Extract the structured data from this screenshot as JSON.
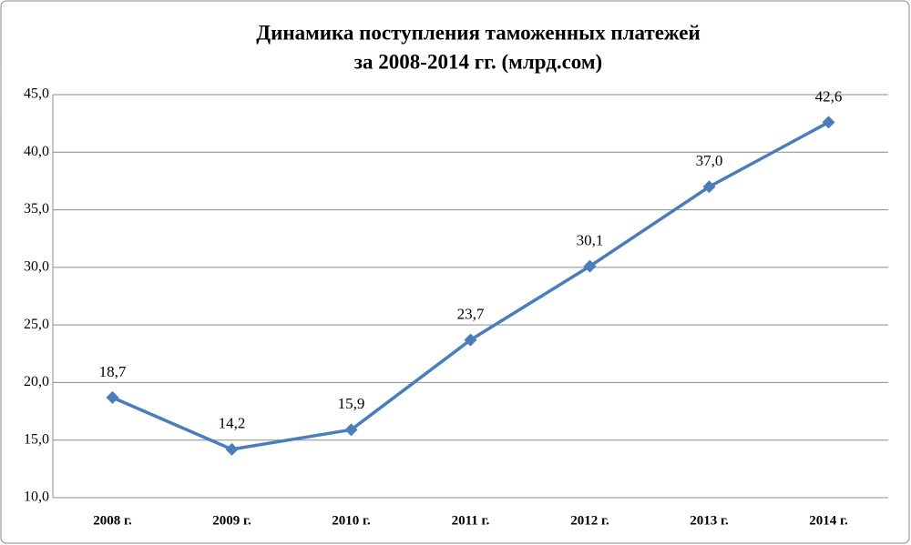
{
  "chart_data": {
    "type": "line",
    "title": [
      "Динамика поступления таможенных платежей",
      "за 2008-2014 гг. (млрд.сом)"
    ],
    "categories": [
      "2008 г.",
      "2009 г.",
      "2010 г.",
      "2011 г.",
      "2012 г.",
      "2013 г.",
      "2014 г."
    ],
    "series": [
      {
        "color": "#4a7ebb",
        "values": [
          18.7,
          14.2,
          15.9,
          23.7,
          30.1,
          37.0,
          42.6
        ],
        "value_labels": [
          "18,7",
          "14,2",
          "15,9",
          "23,7",
          "30,1",
          "37,0",
          "42,6"
        ]
      }
    ],
    "ylim": [
      10,
      45
    ],
    "yticks": [
      {
        "value": 10,
        "label": "10,0"
      },
      {
        "value": 15,
        "label": "15,0"
      },
      {
        "value": 20,
        "label": "20,0"
      },
      {
        "value": 25,
        "label": "25,0"
      },
      {
        "value": 30,
        "label": "30,0"
      },
      {
        "value": 35,
        "label": "35,0"
      },
      {
        "value": 40,
        "label": "40,0"
      },
      {
        "value": 45,
        "label": "45,0"
      }
    ],
    "grid": true
  }
}
